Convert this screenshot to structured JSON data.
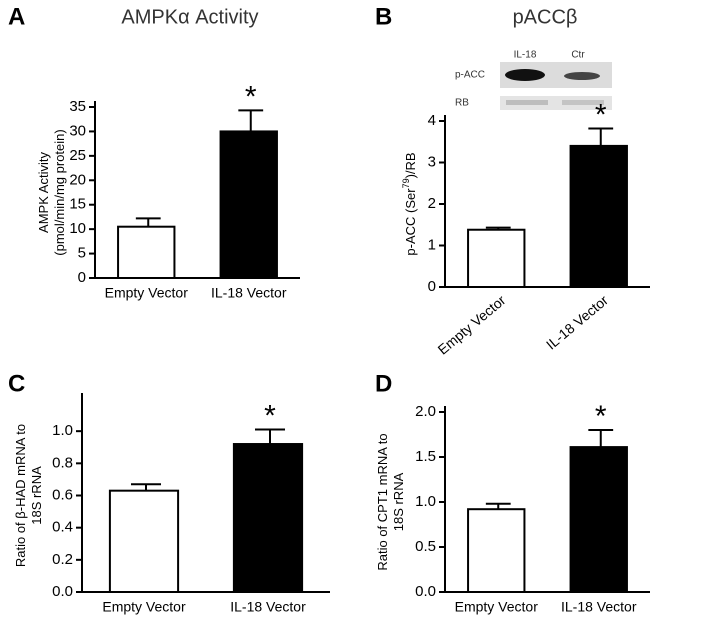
{
  "chart_data": [
    {
      "type": "bar",
      "panel": "A",
      "title": "AMPKα Activity",
      "y_label": [
        "AMPK Activity",
        "(pmol/min/mg protein)"
      ],
      "categories": [
        "Empty Vector",
        "IL-18 Vector"
      ],
      "values": [
        10.5,
        30
      ],
      "errors": [
        1.7,
        4.3
      ],
      "colors": [
        "#ffffff",
        "#000000"
      ],
      "significance": [
        null,
        "*"
      ],
      "ylim": [
        0,
        35
      ],
      "yticks": [
        0,
        5,
        10,
        15,
        20,
        25,
        30,
        35
      ]
    },
    {
      "type": "bar",
      "panel": "B",
      "title": "pACCβ",
      "y_label_parts": [
        "p-ACC (Ser",
        "79",
        ")/RB"
      ],
      "categories": [
        "Empty Vector",
        "IL-18 Vector"
      ],
      "values": [
        1.38,
        3.4
      ],
      "errors": [
        0.05,
        0.42
      ],
      "colors": [
        "#ffffff",
        "#000000"
      ],
      "significance": [
        null,
        "*"
      ],
      "x_label_rotation": -40,
      "ylim": [
        0,
        4
      ],
      "yticks": [
        0,
        1,
        2,
        3,
        4
      ],
      "inset": {
        "columns": [
          "IL-18",
          "Ctr"
        ],
        "rows": [
          "p-ACC",
          "RB"
        ]
      }
    },
    {
      "type": "bar",
      "panel": "C",
      "y_label": [
        "Ratio of β-HAD mRNA to",
        "18S rRNA"
      ],
      "categories": [
        "Empty Vector",
        "IL-18 Vector"
      ],
      "values": [
        0.63,
        0.92
      ],
      "errors": [
        0.04,
        0.09
      ],
      "colors": [
        "#ffffff",
        "#000000"
      ],
      "significance": [
        null,
        "*"
      ],
      "ylim": [
        0,
        1.2
      ],
      "yticks": [
        {
          "value": 0,
          "label": "0.0"
        },
        0.2,
        0.4,
        0.6,
        0.8,
        {
          "value": 1,
          "label": "1.0"
        }
      ]
    },
    {
      "type": "bar",
      "panel": "D",
      "y_label": [
        "Ratio of CPT1 mRNA to",
        "18S rRNA"
      ],
      "categories": [
        "Empty Vector",
        "IL-18 Vector"
      ],
      "values": [
        0.92,
        1.61
      ],
      "errors": [
        0.06,
        0.19
      ],
      "colors": [
        "#ffffff",
        "#000000"
      ],
      "significance": [
        null,
        "*"
      ],
      "ylim": [
        0,
        2
      ],
      "yticks": [
        {
          "value": 0,
          "label": "0.0"
        },
        0.5,
        {
          "value": 1,
          "label": "1.0"
        },
        1.5,
        {
          "value": 2,
          "label": "2.0"
        }
      ]
    }
  ]
}
